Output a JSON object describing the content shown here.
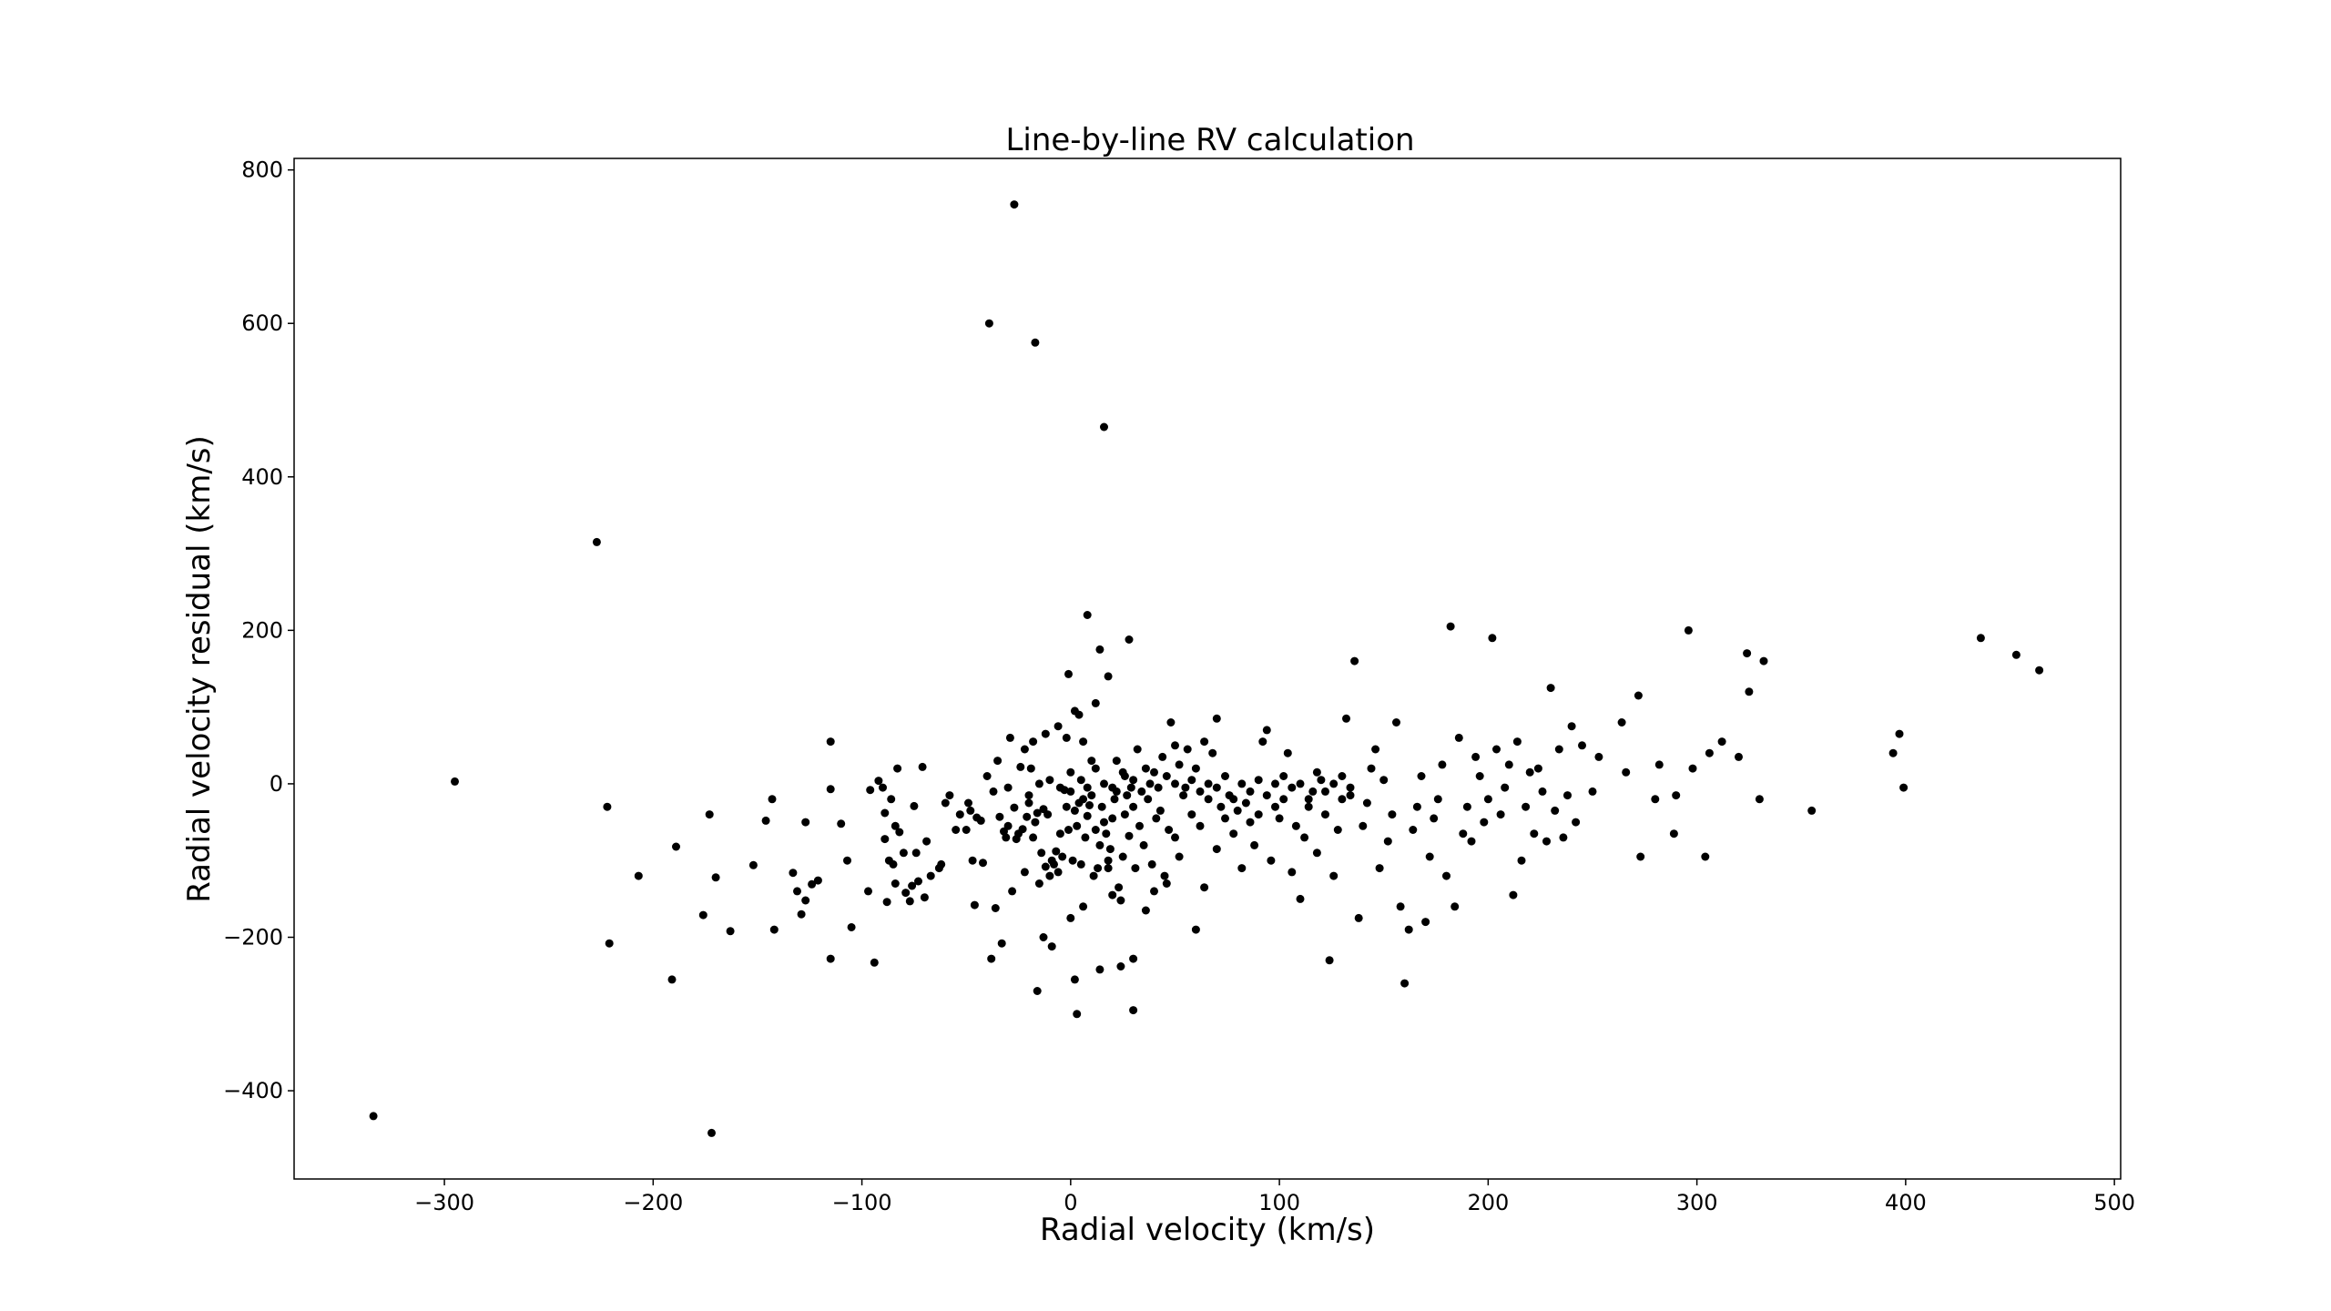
{
  "chart_data": {
    "type": "scatter",
    "title": "Line-by-line RV calculation",
    "xlabel": "Radial velocity (km/s)",
    "ylabel": "Radial velocity residual (km/s)",
    "xlim": [
      -372,
      503
    ],
    "ylim": [
      -515,
      815
    ],
    "xticks": [
      -300,
      -200,
      -100,
      0,
      100,
      200,
      300,
      400,
      500
    ],
    "yticks": [
      -400,
      -200,
      0,
      200,
      400,
      600,
      800
    ],
    "xtick_labels": [
      "−300",
      "−200",
      "−100",
      "0",
      "100",
      "200",
      "300",
      "400",
      "500"
    ],
    "ytick_labels": [
      "−400",
      "−200",
      "0",
      "200",
      "400",
      "600",
      "800"
    ],
    "grid": false,
    "marker_color": "#000000",
    "points": [
      [
        -334,
        -433
      ],
      [
        -295,
        3
      ],
      [
        -227,
        315
      ],
      [
        -222,
        -30
      ],
      [
        -221,
        -208
      ],
      [
        -207,
        -120
      ],
      [
        -191,
        -255
      ],
      [
        -189,
        -82
      ],
      [
        -176,
        -171
      ],
      [
        -173,
        -40
      ],
      [
        -172,
        -455
      ],
      [
        -170,
        -122
      ],
      [
        -163,
        -192
      ],
      [
        -152,
        -106
      ],
      [
        -146,
        -48
      ],
      [
        -143,
        -20
      ],
      [
        -142,
        -190
      ],
      [
        -133,
        -116
      ],
      [
        -131,
        -140
      ],
      [
        -129,
        -170
      ],
      [
        -127,
        -50
      ],
      [
        -127,
        -152
      ],
      [
        -124,
        -131
      ],
      [
        -121,
        -126
      ],
      [
        -115,
        55
      ],
      [
        -115,
        -7
      ],
      [
        -115,
        -228
      ],
      [
        -110,
        -52
      ],
      [
        -107,
        -100
      ],
      [
        -105,
        -187
      ],
      [
        -97,
        -140
      ],
      [
        -96,
        -8
      ],
      [
        -94,
        -233
      ],
      [
        -92,
        4
      ],
      [
        -90,
        -5
      ],
      [
        -89,
        -38
      ],
      [
        -89,
        -72
      ],
      [
        -88,
        -154
      ],
      [
        -87,
        -100
      ],
      [
        -86,
        -20
      ],
      [
        -85,
        -105
      ],
      [
        -84,
        -130
      ],
      [
        -84,
        -55
      ],
      [
        -83,
        20
      ],
      [
        -82,
        -63
      ],
      [
        -80,
        -90
      ],
      [
        -79,
        -142
      ],
      [
        -77,
        -153
      ],
      [
        -76,
        -133
      ],
      [
        -75,
        -29
      ],
      [
        -74,
        -90
      ],
      [
        -73,
        -127
      ],
      [
        -71,
        22
      ],
      [
        -70,
        -148
      ],
      [
        -69,
        -75
      ],
      [
        -67,
        -120
      ],
      [
        -63,
        -110
      ],
      [
        -62,
        -105
      ],
      [
        -55,
        -60
      ],
      [
        -50,
        -60
      ],
      [
        -49,
        -25
      ],
      [
        -48,
        -35
      ],
      [
        -47,
        -100
      ],
      [
        -46,
        -158
      ],
      [
        -45,
        -44
      ],
      [
        -43,
        -48
      ],
      [
        -42,
        -103
      ],
      [
        -38,
        -228
      ],
      [
        -37,
        -10
      ],
      [
        -36,
        -162
      ],
      [
        -34,
        -43
      ],
      [
        -33,
        -208
      ],
      [
        -32,
        -62
      ],
      [
        -31,
        -70
      ],
      [
        -30,
        -55
      ],
      [
        -29,
        60
      ],
      [
        -28,
        -140
      ],
      [
        -27,
        -31
      ],
      [
        -26,
        -72
      ],
      [
        -25,
        -65
      ],
      [
        -24,
        22
      ],
      [
        -23,
        -59
      ],
      [
        -22,
        -115
      ],
      [
        -21,
        -43
      ],
      [
        -20,
        -25
      ],
      [
        -19,
        20
      ],
      [
        -18,
        -70
      ],
      [
        -17,
        -50
      ],
      [
        -16,
        -38
      ],
      [
        -15,
        -130
      ],
      [
        -14,
        -90
      ],
      [
        -13,
        -33
      ],
      [
        -12,
        -108
      ],
      [
        -11,
        -40
      ],
      [
        -10,
        -120
      ],
      [
        -9,
        -100
      ],
      [
        -8,
        -105
      ],
      [
        -7,
        -88
      ],
      [
        -6,
        -115
      ],
      [
        -5,
        -65
      ],
      [
        -4,
        -95
      ],
      [
        -3,
        -8
      ],
      [
        -2,
        -30
      ],
      [
        -1,
        -60
      ],
      [
        0,
        -10
      ],
      [
        1,
        -100
      ],
      [
        2,
        -35
      ],
      [
        3,
        -55
      ],
      [
        4,
        -25
      ],
      [
        5,
        -105
      ],
      [
        6,
        -20
      ],
      [
        7,
        -70
      ],
      [
        8,
        -42
      ],
      [
        9,
        -28
      ],
      [
        10,
        -15
      ],
      [
        11,
        -120
      ],
      [
        12,
        -60
      ],
      [
        13,
        -110
      ],
      [
        14,
        -80
      ],
      [
        15,
        -30
      ],
      [
        16,
        -50
      ],
      [
        17,
        -65
      ],
      [
        18,
        -100
      ],
      [
        19,
        -85
      ],
      [
        20,
        -45
      ],
      [
        21,
        -20
      ],
      [
        22,
        -10
      ],
      [
        23,
        -135
      ],
      [
        24,
        -152
      ],
      [
        25,
        -95
      ],
      [
        26,
        -40
      ],
      [
        27,
        -15
      ],
      [
        28,
        -68
      ],
      [
        29,
        -5
      ],
      [
        30,
        -30
      ],
      [
        31,
        -110
      ],
      [
        33,
        -55
      ],
      [
        35,
        -80
      ],
      [
        37,
        -20
      ],
      [
        39,
        -105
      ],
      [
        41,
        -45
      ],
      [
        43,
        -35
      ],
      [
        45,
        -120
      ],
      [
        47,
        -60
      ],
      [
        -39,
        600
      ],
      [
        -27,
        755
      ],
      [
        -17,
        575
      ],
      [
        16,
        465
      ],
      [
        8,
        220
      ],
      [
        14,
        175
      ],
      [
        28,
        188
      ],
      [
        2,
        95
      ],
      [
        4,
        90
      ],
      [
        -1,
        143
      ],
      [
        12,
        105
      ],
      [
        18,
        140
      ],
      [
        -6,
        75
      ],
      [
        -2,
        60
      ],
      [
        6,
        55
      ],
      [
        10,
        30
      ],
      [
        -12,
        65
      ],
      [
        -18,
        55
      ],
      [
        22,
        30
      ],
      [
        26,
        10
      ],
      [
        32,
        45
      ],
      [
        36,
        20
      ],
      [
        40,
        15
      ],
      [
        44,
        35
      ],
      [
        48,
        80
      ],
      [
        50,
        50
      ],
      [
        52,
        25
      ],
      [
        56,
        45
      ],
      [
        60,
        20
      ],
      [
        64,
        55
      ],
      [
        68,
        40
      ],
      [
        70,
        85
      ],
      [
        -16,
        -270
      ],
      [
        -9,
        -212
      ],
      [
        2,
        -255
      ],
      [
        3,
        -300
      ],
      [
        14,
        -242
      ],
      [
        24,
        -238
      ],
      [
        30,
        -228
      ],
      [
        30,
        -295
      ],
      [
        -13,
        -200
      ],
      [
        0,
        -175
      ],
      [
        6,
        -160
      ],
      [
        18,
        -110
      ],
      [
        20,
        -145
      ],
      [
        36,
        -165
      ],
      [
        40,
        -140
      ],
      [
        46,
        -130
      ],
      [
        50,
        -70
      ],
      [
        52,
        -95
      ],
      [
        55,
        -5
      ],
      [
        58,
        -40
      ],
      [
        60,
        -190
      ],
      [
        62,
        -55
      ],
      [
        64,
        -135
      ],
      [
        66,
        -20
      ],
      [
        70,
        -85
      ],
      [
        72,
        -30
      ],
      [
        74,
        -45
      ],
      [
        76,
        -15
      ],
      [
        78,
        -65
      ],
      [
        80,
        -35
      ],
      [
        82,
        -110
      ],
      [
        84,
        -25
      ],
      [
        86,
        -50
      ],
      [
        88,
        -80
      ],
      [
        90,
        -40
      ],
      [
        92,
        55
      ],
      [
        94,
        70
      ],
      [
        96,
        -100
      ],
      [
        98,
        -30
      ],
      [
        100,
        -45
      ],
      [
        102,
        -20
      ],
      [
        104,
        40
      ],
      [
        106,
        -115
      ],
      [
        108,
        -55
      ],
      [
        110,
        -150
      ],
      [
        112,
        -70
      ],
      [
        114,
        -30
      ],
      [
        116,
        -10
      ],
      [
        118,
        -90
      ],
      [
        120,
        5
      ],
      [
        122,
        -40
      ],
      [
        124,
        -230
      ],
      [
        126,
        -120
      ],
      [
        128,
        -60
      ],
      [
        130,
        -20
      ],
      [
        132,
        85
      ],
      [
        134,
        -5
      ],
      [
        136,
        160
      ],
      [
        138,
        -175
      ],
      [
        140,
        -55
      ],
      [
        142,
        -25
      ],
      [
        144,
        20
      ],
      [
        146,
        45
      ],
      [
        148,
        -110
      ],
      [
        150,
        5
      ],
      [
        152,
        -75
      ],
      [
        154,
        -40
      ],
      [
        156,
        80
      ],
      [
        158,
        -160
      ],
      [
        160,
        -260
      ],
      [
        162,
        -190
      ],
      [
        164,
        -60
      ],
      [
        166,
        -30
      ],
      [
        168,
        10
      ],
      [
        170,
        -180
      ],
      [
        172,
        -95
      ],
      [
        174,
        -45
      ],
      [
        176,
        -20
      ],
      [
        178,
        25
      ],
      [
        180,
        -120
      ],
      [
        182,
        205
      ],
      [
        184,
        -160
      ],
      [
        186,
        60
      ],
      [
        188,
        -65
      ],
      [
        190,
        -30
      ],
      [
        192,
        -75
      ],
      [
        194,
        35
      ],
      [
        196,
        10
      ],
      [
        198,
        -50
      ],
      [
        200,
        -20
      ],
      [
        202,
        190
      ],
      [
        204,
        45
      ],
      [
        206,
        -40
      ],
      [
        208,
        -5
      ],
      [
        210,
        25
      ],
      [
        212,
        -145
      ],
      [
        214,
        55
      ],
      [
        216,
        -100
      ],
      [
        218,
        -30
      ],
      [
        220,
        15
      ],
      [
        222,
        -65
      ],
      [
        224,
        20
      ],
      [
        226,
        -10
      ],
      [
        228,
        -75
      ],
      [
        230,
        125
      ],
      [
        232,
        -35
      ],
      [
        234,
        45
      ],
      [
        236,
        -70
      ],
      [
        238,
        -15
      ],
      [
        240,
        75
      ],
      [
        242,
        -50
      ],
      [
        245,
        50
      ],
      [
        250,
        -10
      ],
      [
        253,
        35
      ],
      [
        264,
        80
      ],
      [
        266,
        15
      ],
      [
        272,
        115
      ],
      [
        273,
        -95
      ],
      [
        280,
        -20
      ],
      [
        282,
        25
      ],
      [
        289,
        -65
      ],
      [
        290,
        -15
      ],
      [
        296,
        200
      ],
      [
        298,
        20
      ],
      [
        304,
        -95
      ],
      [
        306,
        40
      ],
      [
        312,
        55
      ],
      [
        320,
        35
      ],
      [
        324,
        170
      ],
      [
        325,
        120
      ],
      [
        330,
        -20
      ],
      [
        332,
        160
      ],
      [
        355,
        -35
      ],
      [
        394,
        40
      ],
      [
        397,
        65
      ],
      [
        399,
        -5
      ],
      [
        436,
        190
      ],
      [
        453,
        168
      ],
      [
        464,
        148
      ],
      [
        -60,
        -25
      ],
      [
        -53,
        -40
      ],
      [
        -58,
        -15
      ],
      [
        -40,
        10
      ],
      [
        -35,
        30
      ],
      [
        -30,
        -5
      ],
      [
        -22,
        45
      ],
      [
        -20,
        -15
      ],
      [
        -15,
        0
      ],
      [
        -10,
        5
      ],
      [
        -5,
        -5
      ],
      [
        0,
        15
      ],
      [
        5,
        5
      ],
      [
        8,
        -5
      ],
      [
        12,
        20
      ],
      [
        16,
        0
      ],
      [
        20,
        -5
      ],
      [
        25,
        15
      ],
      [
        30,
        5
      ],
      [
        34,
        -10
      ],
      [
        38,
        0
      ],
      [
        42,
        -5
      ],
      [
        46,
        10
      ],
      [
        50,
        0
      ],
      [
        54,
        -15
      ],
      [
        58,
        5
      ],
      [
        62,
        -10
      ],
      [
        66,
        0
      ],
      [
        70,
        -5
      ],
      [
        74,
        10
      ],
      [
        78,
        -20
      ],
      [
        82,
        0
      ],
      [
        86,
        -10
      ],
      [
        90,
        5
      ],
      [
        94,
        -15
      ],
      [
        98,
        0
      ],
      [
        102,
        10
      ],
      [
        106,
        -5
      ],
      [
        110,
        0
      ],
      [
        114,
        -20
      ],
      [
        118,
        15
      ],
      [
        122,
        -10
      ],
      [
        126,
        0
      ],
      [
        130,
        10
      ],
      [
        134,
        -15
      ]
    ]
  }
}
